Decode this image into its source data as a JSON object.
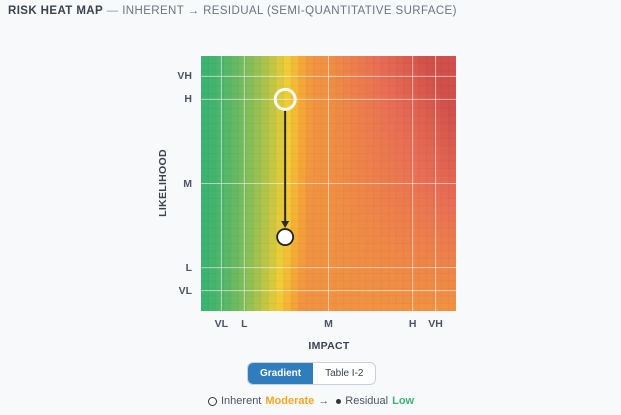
{
  "header": {
    "title_strong": "RISK HEAT MAP",
    "title_sep": "—",
    "title_rest": "INHERENT → RESIDUAL (SEMI-QUANTITATIVE SURFACE)"
  },
  "chart_data": {
    "type": "heatmap",
    "title": "RISK HEAT MAP — INHERENT → RESIDUAL (SEMI-QUANTITATIVE SURFACE)",
    "xlabel": "IMPACT",
    "ylabel": "LIKELIHOOD",
    "x_ticks": [
      {
        "label": "VL",
        "value": 0.08
      },
      {
        "label": "L",
        "value": 0.17
      },
      {
        "label": "M",
        "value": 0.5
      },
      {
        "label": "H",
        "value": 0.83
      },
      {
        "label": "VH",
        "value": 0.92
      }
    ],
    "y_ticks": [
      {
        "label": "VH",
        "value": 0.92
      },
      {
        "label": "H",
        "value": 0.83
      },
      {
        "label": "M",
        "value": 0.5
      },
      {
        "label": "L",
        "value": 0.17
      },
      {
        "label": "VL",
        "value": 0.08
      }
    ],
    "xlim": [
      0,
      1
    ],
    "ylim": [
      0,
      1
    ],
    "inherent": {
      "x": 0.33,
      "y": 0.83
    },
    "residual": {
      "x": 0.33,
      "y": 0.29
    },
    "color_scale": [
      "#3cb371",
      "#f2cd35",
      "#f5a637",
      "#e96e55",
      "#d0504a"
    ],
    "grid": true
  },
  "view_toggle": {
    "options": [
      "Gradient",
      "Table I-2"
    ],
    "selected": "Gradient"
  },
  "legend": {
    "inherent_label": "Inherent",
    "inherent_level": "Moderate",
    "inherent_color": "#f5a623",
    "arrow": "→",
    "residual_label": "Residual",
    "residual_level": "Low",
    "residual_color": "#3cb371"
  }
}
